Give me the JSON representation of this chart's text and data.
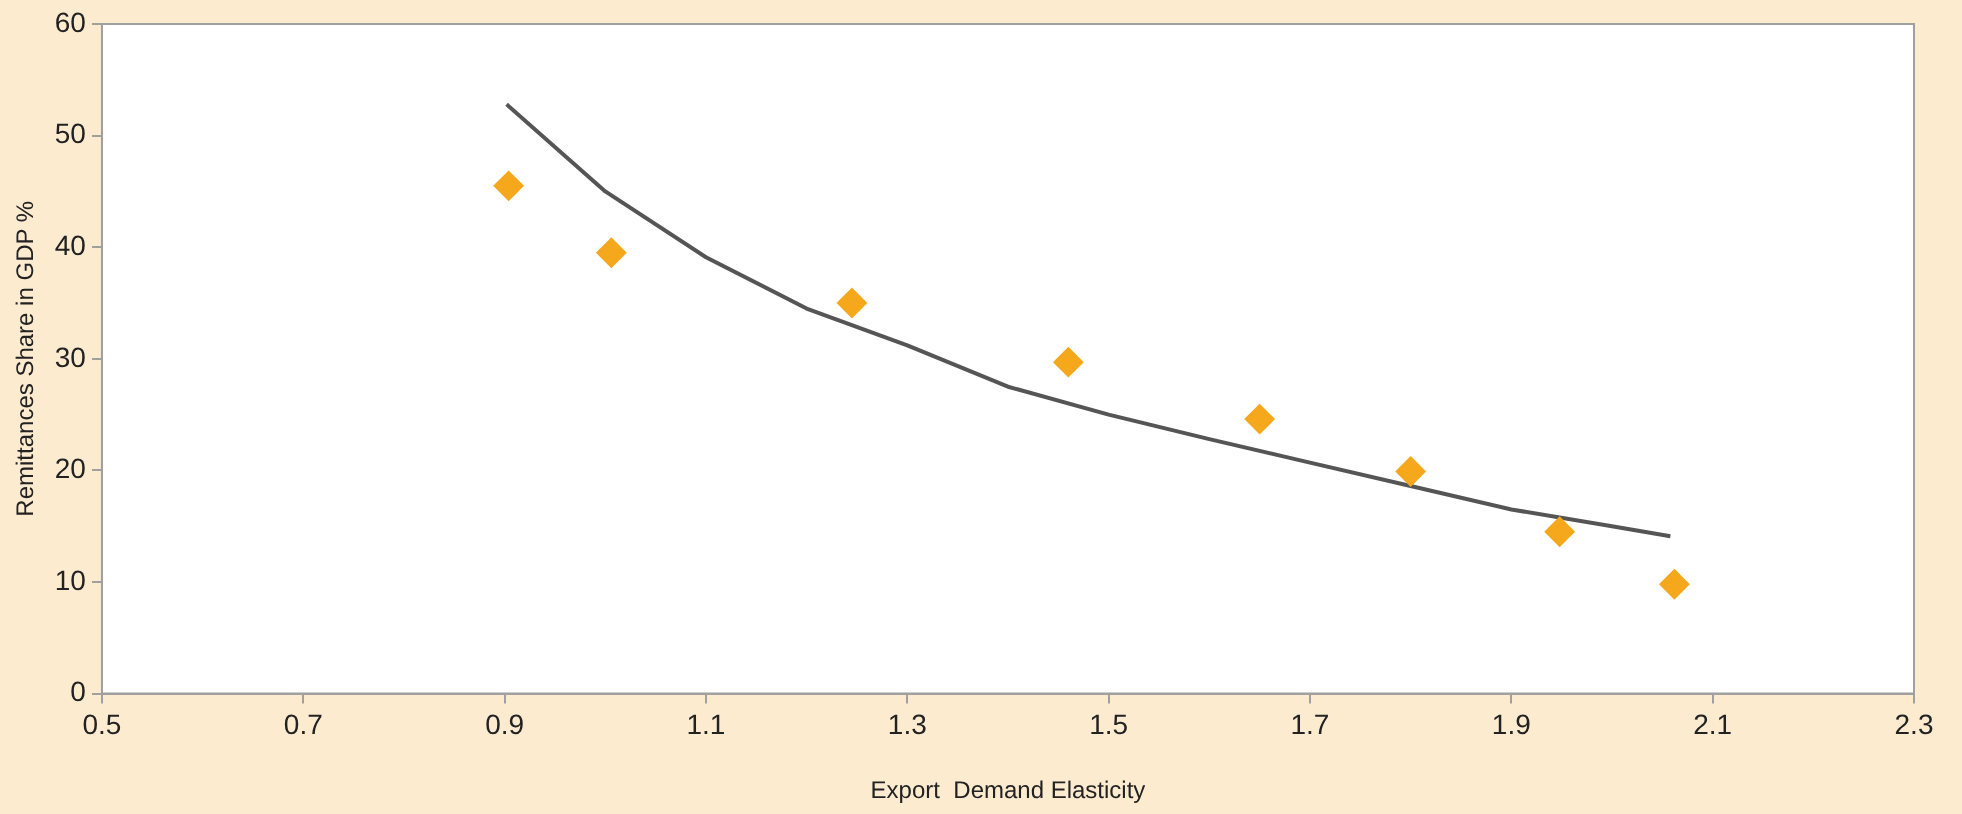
{
  "chart_data": {
    "type": "scatter",
    "xlabel": "Export  Demand Elasticity",
    "ylabel": "Remittances Share in GDP %",
    "xlim": [
      0.5,
      2.3
    ],
    "xticks": [
      {
        "value": 0.5,
        "label": "0.5"
      },
      {
        "value": 0.7,
        "label": "0.7"
      },
      {
        "value": 0.9,
        "label": "0.9"
      },
      {
        "value": 1.1,
        "label": "1.1"
      },
      {
        "value": 1.3,
        "label": "1.3"
      },
      {
        "value": 1.5,
        "label": "1.5"
      },
      {
        "value": 1.7,
        "label": "1.7"
      },
      {
        "value": 1.9,
        "label": "1.9"
      },
      {
        "value": 2.1,
        "label": "2.1"
      },
      {
        "value": 2.3,
        "label": "2.3"
      }
    ],
    "ylim": [
      0,
      60
    ],
    "yticks": [
      0,
      10,
      20,
      30,
      40,
      50,
      60
    ],
    "grid": false,
    "legend": false,
    "series": [
      {
        "color": "#f5a81c",
        "marker": "diamond",
        "x": [
          0.904,
          1.006,
          1.245,
          1.46,
          1.65,
          1.8,
          1.948,
          2.062
        ],
        "values": [
          45.5,
          39.5,
          35,
          29.7,
          24.6,
          19.9,
          14.5,
          9.8
        ]
      },
      {
        "type": "line",
        "color": "#555555",
        "marker": "none",
        "line_style": "solid",
        "x": [
          0.902,
          1.0,
          1.1,
          1.2,
          1.3,
          1.4,
          1.5,
          1.6,
          1.7,
          1.8,
          1.9,
          2.0,
          2.058
        ],
        "values": [
          52.8,
          45,
          39.1,
          34.5,
          31.2,
          27.5,
          25,
          22.8,
          20.7,
          18.6,
          16.5,
          15,
          14.1
        ]
      }
    ]
  }
}
